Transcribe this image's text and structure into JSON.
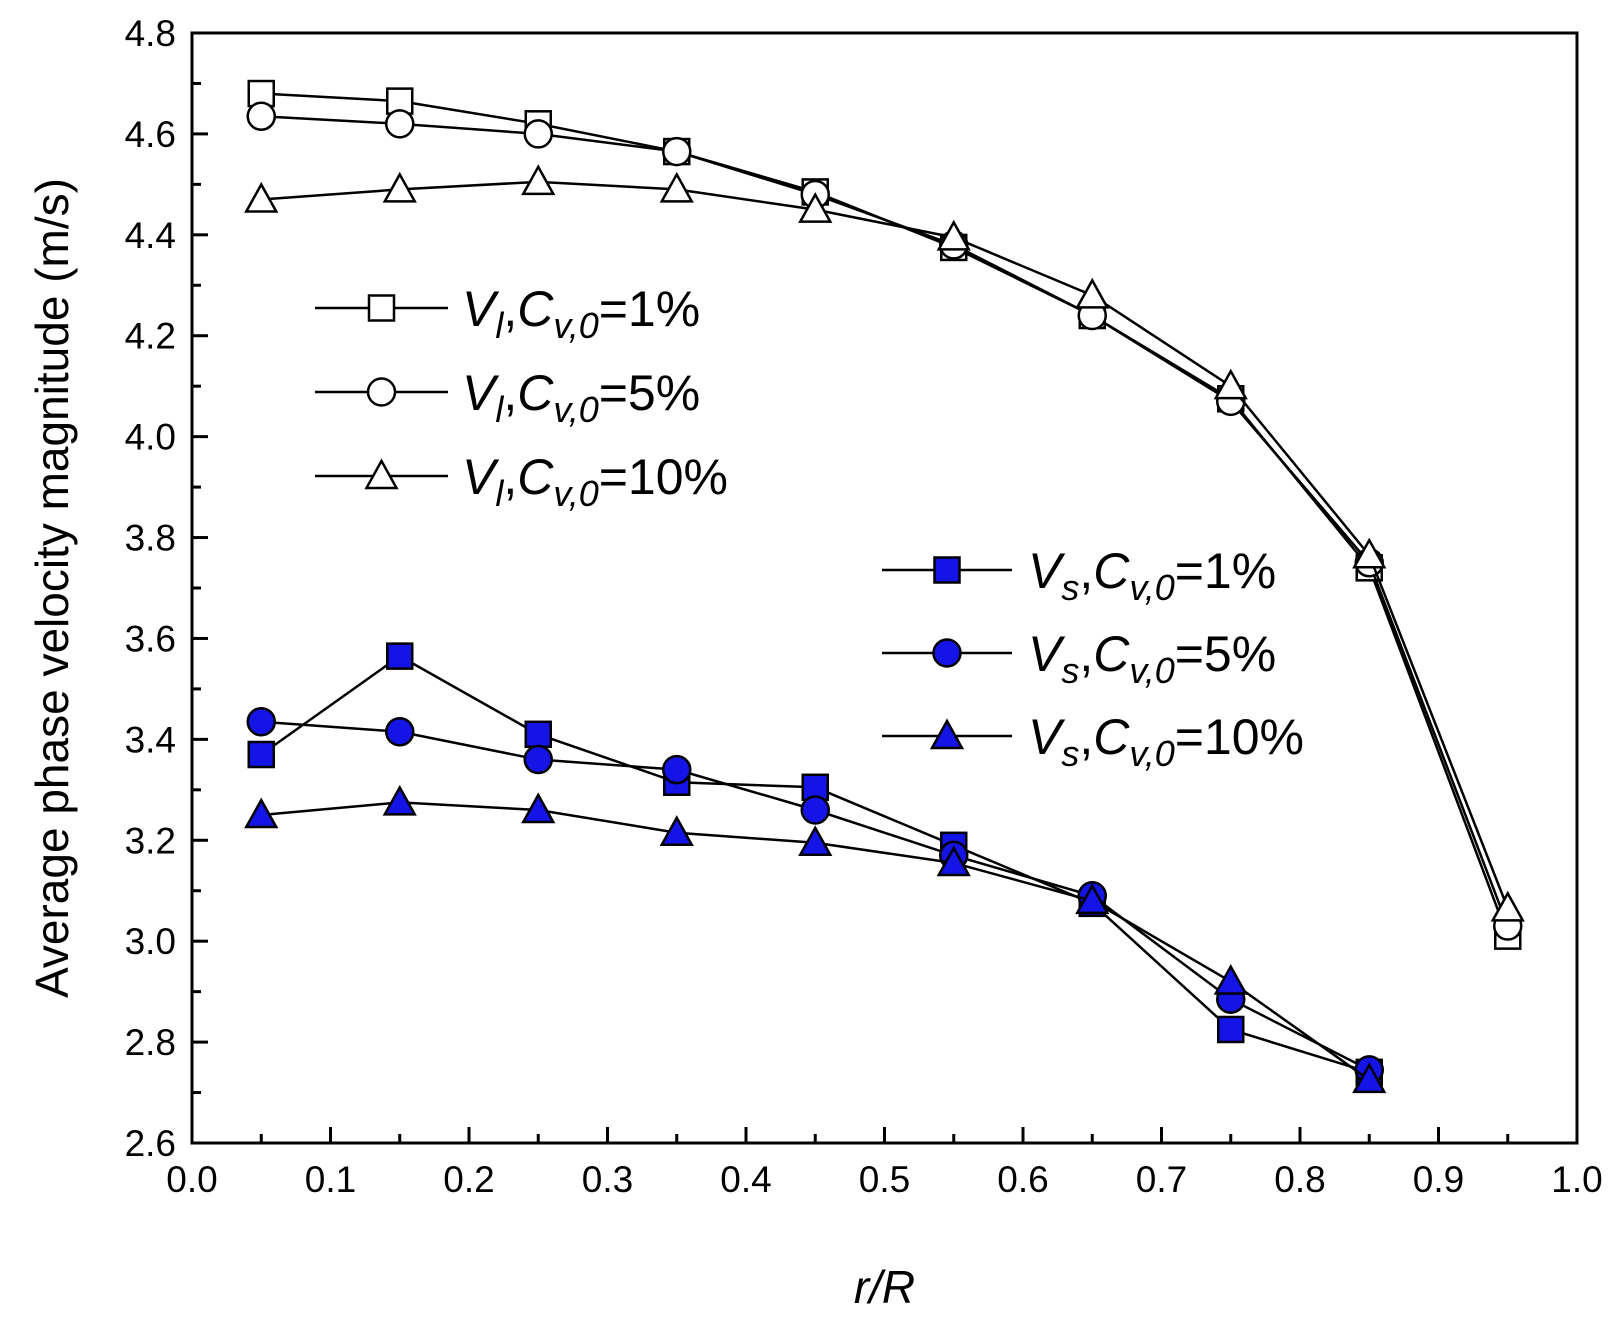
{
  "chart_data": {
    "type": "line",
    "title": "",
    "xlabel": "r/R",
    "ylabel": "Average phase velocity magnitude (m/s)",
    "xlim": [
      0.0,
      1.0
    ],
    "ylim": [
      2.6,
      4.8
    ],
    "x_ticks": [
      "0.0",
      "0.1",
      "0.2",
      "0.3",
      "0.4",
      "0.5",
      "0.6",
      "0.7",
      "0.8",
      "0.9",
      "1.0"
    ],
    "y_ticks": [
      "2.6",
      "2.8",
      "3.0",
      "3.2",
      "3.4",
      "3.6",
      "3.8",
      "4.0",
      "4.2",
      "4.4",
      "4.6",
      "4.8"
    ],
    "grid": false,
    "series": [
      {
        "name": "Vl,Cv,0=1%",
        "label_var": "V",
        "label_var_sub": "l",
        "label_c": "C",
        "label_c_sub": "v,0",
        "label_value": "=1%",
        "marker": "square",
        "fill": "#ffffff",
        "legend_group": "liquid",
        "x": [
          0.05,
          0.15,
          0.25,
          0.35,
          0.45,
          0.55,
          0.65,
          0.75,
          0.85,
          0.95
        ],
        "values": [
          4.68,
          4.665,
          4.62,
          4.565,
          4.485,
          4.375,
          4.24,
          4.075,
          3.74,
          3.01
        ]
      },
      {
        "name": "Vl,Cv,0=5%",
        "label_var": "V",
        "label_var_sub": "l",
        "label_c": "C",
        "label_c_sub": "v,0",
        "label_value": "=5%",
        "marker": "circle",
        "fill": "#ffffff",
        "legend_group": "liquid",
        "x": [
          0.05,
          0.15,
          0.25,
          0.35,
          0.45,
          0.55,
          0.65,
          0.75,
          0.85,
          0.95
        ],
        "values": [
          4.635,
          4.62,
          4.6,
          4.565,
          4.48,
          4.38,
          4.24,
          4.07,
          3.75,
          3.03
        ]
      },
      {
        "name": "Vl,Cv,0=10%",
        "label_var": "V",
        "label_var_sub": "l",
        "label_c": "C",
        "label_c_sub": "v,0",
        "label_value": "=10%",
        "marker": "triangle",
        "fill": "#ffffff",
        "legend_group": "liquid",
        "x": [
          0.05,
          0.15,
          0.25,
          0.35,
          0.45,
          0.55,
          0.65,
          0.75,
          0.85,
          0.95
        ],
        "values": [
          4.47,
          4.49,
          4.505,
          4.49,
          4.45,
          4.395,
          4.28,
          4.1,
          3.765,
          3.065
        ]
      },
      {
        "name": "Vs,Cv,0=1%",
        "label_var": "V",
        "label_var_sub": "s",
        "label_c": "C",
        "label_c_sub": "v,0",
        "label_value": "=1%",
        "marker": "square",
        "fill": "#1414e6",
        "legend_group": "solid",
        "x": [
          0.05,
          0.15,
          0.25,
          0.35,
          0.45,
          0.55,
          0.65,
          0.75,
          0.85
        ],
        "values": [
          3.37,
          3.565,
          3.41,
          3.315,
          3.305,
          3.19,
          3.075,
          2.825,
          2.74
        ]
      },
      {
        "name": "Vs,Cv,0=5%",
        "label_var": "V",
        "label_var_sub": "s",
        "label_c": "C",
        "label_c_sub": "v,0",
        "label_value": "=5%",
        "marker": "circle",
        "fill": "#1414e6",
        "legend_group": "solid",
        "x": [
          0.05,
          0.15,
          0.25,
          0.35,
          0.45,
          0.55,
          0.65,
          0.75,
          0.85
        ],
        "values": [
          3.435,
          3.415,
          3.36,
          3.34,
          3.26,
          3.17,
          3.09,
          2.885,
          2.745
        ]
      },
      {
        "name": "Vs,Cv,0=10%",
        "label_var": "V",
        "label_var_sub": "s",
        "label_c": "C",
        "label_c_sub": "v,0",
        "label_value": "=10%",
        "marker": "triangle",
        "fill": "#1414e6",
        "legend_group": "solid",
        "x": [
          0.05,
          0.15,
          0.25,
          0.35,
          0.45,
          0.55,
          0.65,
          0.75,
          0.85
        ],
        "values": [
          3.25,
          3.275,
          3.26,
          3.215,
          3.195,
          3.155,
          3.08,
          2.92,
          2.725
        ]
      }
    ]
  }
}
